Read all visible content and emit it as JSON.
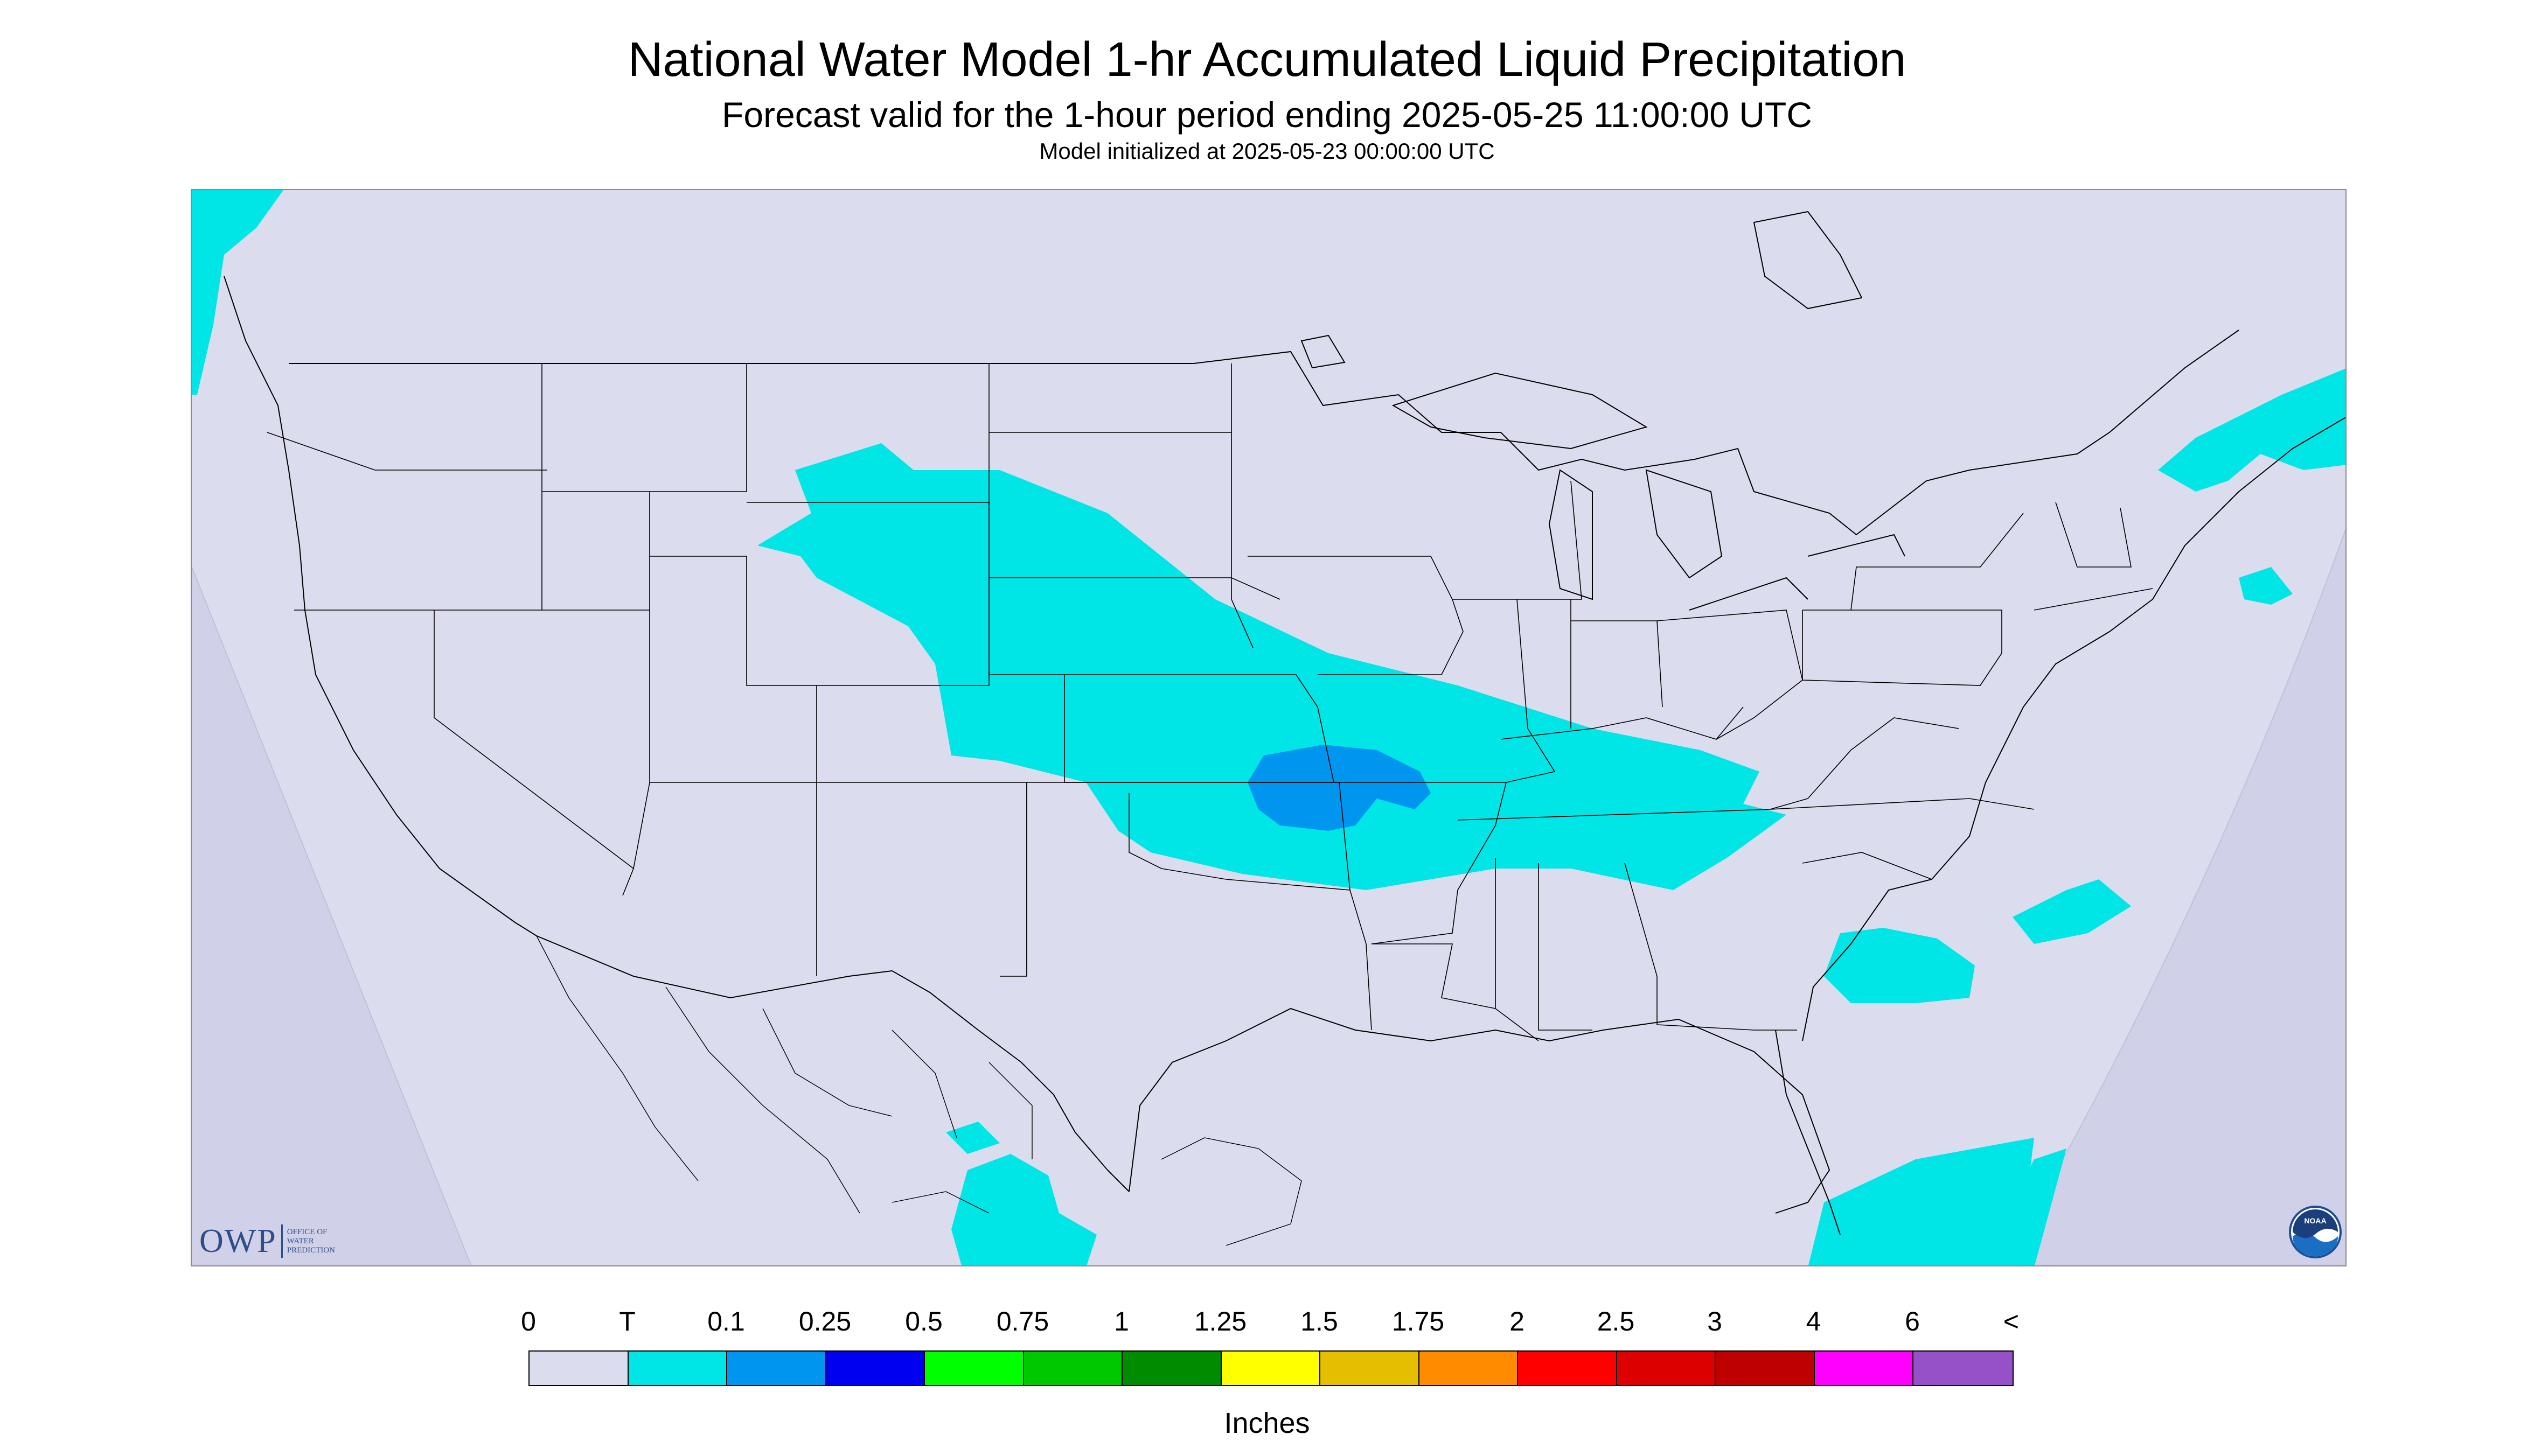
{
  "header": {
    "title": "National Water Model 1-hr Accumulated Liquid Precipitation",
    "subtitle": "Forecast valid for the 1-hour period ending 2025-05-25 11:00:00 UTC",
    "init": "Model initialized at 2025-05-23 00:00:00 UTC"
  },
  "logos": {
    "owp_mark": "OWP",
    "owp_text_1": "OFFICE OF",
    "owp_text_2": "WATER",
    "owp_text_3": "PREDICTION",
    "noaa_mark": "NOAA"
  },
  "legend": {
    "labels": [
      "0",
      "T",
      "0.1",
      "0.25",
      "0.5",
      "0.75",
      "1",
      "1.25",
      "1.5",
      "1.75",
      "2",
      "2.5",
      "3",
      "4",
      "6",
      "<"
    ],
    "colors": [
      "#dcdcef",
      "#00e5e5",
      "#0096f0",
      "#0000f0",
      "#00ff00",
      "#00c800",
      "#008c00",
      "#ffff00",
      "#e6be00",
      "#ff8c00",
      "#ff0000",
      "#dc0000",
      "#be0000",
      "#ff00ff",
      "#9650c8"
    ],
    "units": "Inches"
  },
  "map": {
    "background_color": "#dcdcef",
    "outside_domain_color": "#dcdcef",
    "precip_trace_color": "#00e5e5",
    "precip_tenth_color": "#0096f0",
    "boundary_color": "#000000"
  }
}
